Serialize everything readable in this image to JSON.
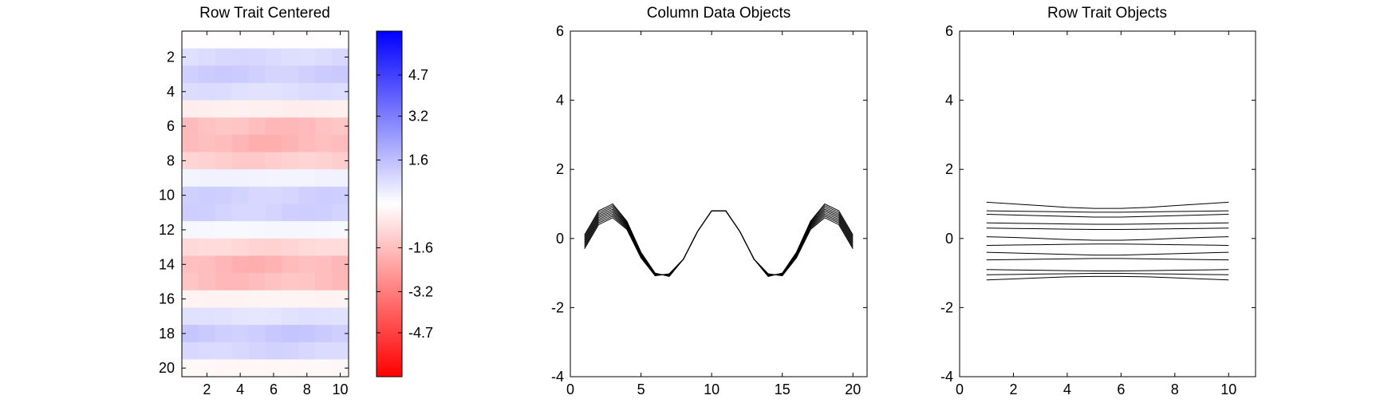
{
  "chart_data": [
    {
      "type": "heatmap",
      "title": "Row Trait Centered",
      "x": [
        1,
        2,
        3,
        4,
        5,
        6,
        7,
        8,
        9,
        10
      ],
      "y": [
        1,
        2,
        3,
        4,
        5,
        6,
        7,
        8,
        9,
        10,
        11,
        12,
        13,
        14,
        15,
        16,
        17,
        18,
        19,
        20
      ],
      "xlim": [
        0.5,
        10.5
      ],
      "ylim": [
        20.5,
        0.5
      ],
      "x_ticks": [
        "2",
        "4",
        "6",
        "8",
        "10"
      ],
      "y_ticks": [
        "2",
        "4",
        "6",
        "8",
        "10",
        "12",
        "14",
        "16",
        "18",
        "20"
      ],
      "grid": false,
      "row_values": [
        -0.05,
        0.9,
        1.2,
        0.8,
        -0.4,
        -1.6,
        -1.8,
        -1.2,
        0.3,
        1.1,
        1.1,
        0.2,
        -1.0,
        -1.8,
        -1.6,
        -0.3,
        0.7,
        1.3,
        1.0,
        -0.2
      ],
      "colorbar": {
        "ticks": [
          "4.7",
          "3.2",
          "1.6",
          "-1.6",
          "-3.2",
          "-4.7"
        ],
        "tick_values": [
          4.7,
          3.2,
          1.6,
          -1.6,
          -3.2,
          -4.7
        ],
        "range": [
          -6.3,
          6.3
        ],
        "high_color": "#0000ff",
        "mid_color": "#ffffff",
        "low_color": "#ff0000"
      }
    },
    {
      "type": "line",
      "title": "Column Data Objects",
      "xlim": [
        0,
        21
      ],
      "ylim": [
        -4,
        6
      ],
      "x_ticks": [
        "0",
        "5",
        "10",
        "15",
        "20"
      ],
      "y_ticks": [
        "-4",
        "-2",
        "0",
        "2",
        "4",
        "6"
      ],
      "grid": false,
      "line_color": "#000000",
      "x": [
        1,
        2,
        3,
        4,
        5,
        6,
        7,
        8,
        9,
        10,
        11,
        12,
        13,
        14,
        15,
        16,
        17,
        18,
        19,
        20
      ],
      "series": [
        {
          "values": [
            0.1,
            0.8,
            1.0,
            0.5,
            -0.4,
            -1.0,
            -1.1,
            -0.6,
            0.2,
            0.8,
            0.8,
            0.2,
            -0.6,
            -1.1,
            -1.0,
            -0.4,
            0.5,
            1.0,
            0.8,
            0.1
          ]
        },
        {
          "values": [
            0.05,
            0.75,
            0.95,
            0.47,
            -0.42,
            -1.01,
            -1.09,
            -0.6,
            0.2,
            0.8,
            0.8,
            0.2,
            -0.6,
            -1.09,
            -1.01,
            -0.42,
            0.47,
            0.95,
            0.75,
            0.05
          ]
        },
        {
          "values": [
            0.0,
            0.7,
            0.9,
            0.44,
            -0.44,
            -1.02,
            -1.08,
            -0.6,
            0.2,
            0.8,
            0.8,
            0.2,
            -0.6,
            -1.08,
            -1.02,
            -0.44,
            0.44,
            0.9,
            0.7,
            0.0
          ]
        },
        {
          "values": [
            -0.05,
            0.65,
            0.85,
            0.41,
            -0.46,
            -1.03,
            -1.07,
            -0.6,
            0.2,
            0.8,
            0.8,
            0.2,
            -0.6,
            -1.07,
            -1.03,
            -0.46,
            0.41,
            0.85,
            0.65,
            -0.05
          ]
        },
        {
          "values": [
            -0.1,
            0.6,
            0.8,
            0.38,
            -0.48,
            -1.04,
            -1.06,
            -0.6,
            0.2,
            0.8,
            0.8,
            0.2,
            -0.6,
            -1.06,
            -1.04,
            -0.48,
            0.38,
            0.8,
            0.6,
            -0.1
          ]
        },
        {
          "values": [
            -0.15,
            0.55,
            0.75,
            0.35,
            -0.5,
            -1.05,
            -1.05,
            -0.6,
            0.2,
            0.8,
            0.8,
            0.2,
            -0.6,
            -1.05,
            -1.05,
            -0.5,
            0.35,
            0.75,
            0.55,
            -0.15
          ]
        },
        {
          "values": [
            -0.2,
            0.5,
            0.7,
            0.32,
            -0.52,
            -1.06,
            -1.04,
            -0.6,
            0.2,
            0.8,
            0.8,
            0.2,
            -0.6,
            -1.04,
            -1.06,
            -0.52,
            0.32,
            0.7,
            0.5,
            -0.2
          ]
        },
        {
          "values": [
            -0.25,
            0.45,
            0.65,
            0.29,
            -0.54,
            -1.07,
            -1.03,
            -0.6,
            0.2,
            0.8,
            0.8,
            0.2,
            -0.6,
            -1.03,
            -1.07,
            -0.54,
            0.29,
            0.65,
            0.45,
            -0.25
          ]
        },
        {
          "values": [
            -0.3,
            0.4,
            0.6,
            0.26,
            -0.56,
            -1.08,
            -1.02,
            -0.6,
            0.2,
            0.8,
            0.8,
            0.2,
            -0.6,
            -1.02,
            -1.08,
            -0.56,
            0.26,
            0.6,
            0.4,
            -0.3
          ]
        }
      ]
    },
    {
      "type": "line",
      "title": "Row Trait Objects",
      "xlim": [
        0,
        11
      ],
      "ylim": [
        -4,
        6
      ],
      "x_ticks": [
        "0",
        "2",
        "4",
        "6",
        "8",
        "10"
      ],
      "y_ticks": [
        "-4",
        "-2",
        "0",
        "2",
        "4",
        "6"
      ],
      "grid": false,
      "line_color": "#000000",
      "x": [
        1,
        2,
        3,
        4,
        5,
        6,
        7,
        8,
        9,
        10
      ],
      "series": [
        {
          "values": [
            1.05,
            1.0,
            0.95,
            0.9,
            0.87,
            0.87,
            0.9,
            0.95,
            1.0,
            1.05
          ]
        },
        {
          "values": [
            0.8,
            0.79,
            0.78,
            0.77,
            0.76,
            0.76,
            0.77,
            0.78,
            0.79,
            0.8
          ]
        },
        {
          "values": [
            0.7,
            0.68,
            0.66,
            0.64,
            0.62,
            0.62,
            0.64,
            0.66,
            0.68,
            0.7
          ]
        },
        {
          "values": [
            0.45,
            0.44,
            0.43,
            0.42,
            0.41,
            0.41,
            0.42,
            0.43,
            0.44,
            0.45
          ]
        },
        {
          "values": [
            0.3,
            0.29,
            0.28,
            0.27,
            0.26,
            0.26,
            0.27,
            0.28,
            0.29,
            0.3
          ]
        },
        {
          "values": [
            0.05,
            0.03,
            0.0,
            -0.03,
            -0.05,
            -0.05,
            -0.03,
            0.0,
            0.03,
            0.05
          ]
        },
        {
          "values": [
            -0.2,
            -0.19,
            -0.18,
            -0.17,
            -0.16,
            -0.16,
            -0.17,
            -0.18,
            -0.19,
            -0.2
          ]
        },
        {
          "values": [
            -0.4,
            -0.42,
            -0.44,
            -0.46,
            -0.48,
            -0.48,
            -0.46,
            -0.44,
            -0.42,
            -0.4
          ]
        },
        {
          "values": [
            -0.62,
            -0.61,
            -0.6,
            -0.59,
            -0.58,
            -0.58,
            -0.59,
            -0.6,
            -0.61,
            -0.62
          ]
        },
        {
          "values": [
            -0.9,
            -0.91,
            -0.92,
            -0.93,
            -0.94,
            -0.94,
            -0.93,
            -0.92,
            -0.91,
            -0.9
          ]
        },
        {
          "values": [
            -1.05,
            -1.04,
            -1.03,
            -1.02,
            -1.01,
            -1.01,
            -1.02,
            -1.03,
            -1.04,
            -1.05
          ]
        },
        {
          "values": [
            -1.2,
            -1.17,
            -1.14,
            -1.11,
            -1.1,
            -1.1,
            -1.11,
            -1.14,
            -1.17,
            -1.2
          ]
        }
      ]
    }
  ]
}
